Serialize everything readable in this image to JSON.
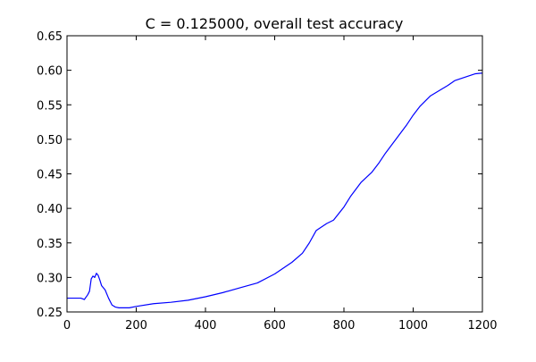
{
  "chart_data": {
    "type": "line",
    "title": "C = 0.125000, overall test accuracy",
    "xlabel": "",
    "ylabel": "",
    "xlim": [
      0,
      1200
    ],
    "ylim": [
      0.25,
      0.65
    ],
    "x_ticks": [
      0,
      200,
      400,
      600,
      800,
      1000,
      1200
    ],
    "x_tick_labels": [
      "0",
      "200",
      "400",
      "600",
      "800",
      "1000",
      "1200"
    ],
    "y_ticks": [
      0.25,
      0.3,
      0.35,
      0.4,
      0.45,
      0.5,
      0.55,
      0.6,
      0.65
    ],
    "y_tick_labels": [
      "0.25",
      "0.30",
      "0.35",
      "0.40",
      "0.45",
      "0.50",
      "0.55",
      "0.60",
      "0.65"
    ],
    "grid": false,
    "legend": "none",
    "series": [
      {
        "color": "#0000ff",
        "x": [
          0,
          20,
          40,
          50,
          60,
          65,
          70,
          75,
          80,
          85,
          90,
          95,
          100,
          110,
          120,
          130,
          140,
          150,
          160,
          180,
          200,
          250,
          300,
          350,
          400,
          450,
          500,
          550,
          600,
          650,
          680,
          700,
          720,
          750,
          770,
          800,
          820,
          850,
          880,
          900,
          920,
          950,
          980,
          1000,
          1020,
          1050,
          1080,
          1100,
          1120,
          1150,
          1180,
          1200
        ],
        "y": [
          0.27,
          0.27,
          0.27,
          0.268,
          0.275,
          0.28,
          0.298,
          0.302,
          0.3,
          0.306,
          0.303,
          0.296,
          0.288,
          0.282,
          0.27,
          0.26,
          0.257,
          0.256,
          0.256,
          0.256,
          0.258,
          0.262,
          0.264,
          0.267,
          0.272,
          0.278,
          0.285,
          0.292,
          0.305,
          0.322,
          0.335,
          0.35,
          0.368,
          0.378,
          0.383,
          0.402,
          0.418,
          0.438,
          0.452,
          0.465,
          0.48,
          0.5,
          0.52,
          0.535,
          0.548,
          0.563,
          0.572,
          0.578,
          0.585,
          0.59,
          0.595,
          0.596
        ]
      }
    ]
  }
}
